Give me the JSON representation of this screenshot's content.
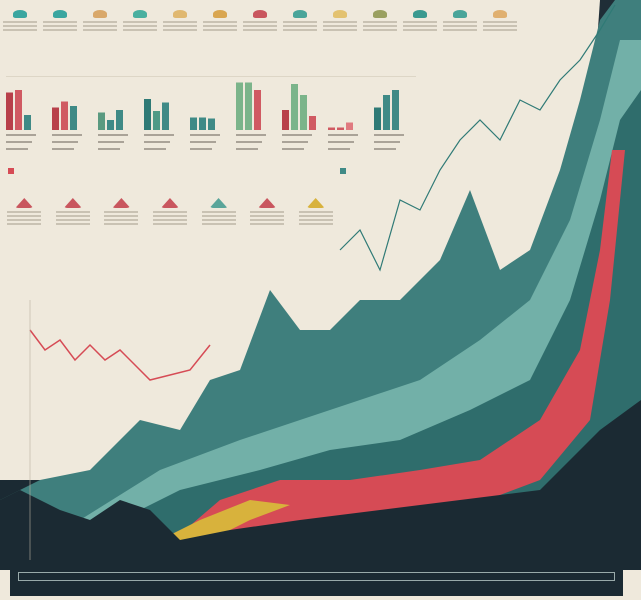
{
  "colors": {
    "paper": "#efe9dc",
    "dark": "#1b2a33",
    "teal": "#3f8a86",
    "teal_light": "#7fbdb3",
    "red": "#d64b55",
    "yellow": "#d8b23c",
    "green": "#7bb48a"
  },
  "top_cards": [
    {
      "icon": "teal-shape-icon",
      "color": "#3aa6a0"
    },
    {
      "icon": "teal-shape-icon",
      "color": "#3aa6a0"
    },
    {
      "icon": "tan-shape-icon",
      "color": "#d9a86a"
    },
    {
      "icon": "teal-shape-icon",
      "color": "#4ab0a0"
    },
    {
      "icon": "tan-shape-icon",
      "color": "#e0b870"
    },
    {
      "icon": "tan-shape-icon",
      "color": "#d9a650"
    },
    {
      "icon": "red-shape-icon",
      "color": "#c9565e"
    },
    {
      "icon": "teal-shape-icon",
      "color": "#4aa59a"
    },
    {
      "icon": "yellow-shape-icon",
      "color": "#e3c270"
    },
    {
      "icon": "olive-shape-icon",
      "color": "#9aa060"
    },
    {
      "icon": "teal-shape-icon",
      "color": "#3a9a90"
    },
    {
      "icon": "teal-shape-icon",
      "color": "#4aa59a"
    },
    {
      "icon": "tan-shape-icon",
      "color": "#e0b070"
    }
  ],
  "mini_cards": [
    {
      "color": "#c9565e"
    },
    {
      "color": "#c9565e"
    },
    {
      "color": "#c9565e"
    },
    {
      "color": "#c9565e"
    },
    {
      "color": "#5aa59a"
    },
    {
      "color": "#c9565e"
    },
    {
      "color": "#d8b23c"
    }
  ],
  "chart_data": [
    {
      "type": "bar",
      "title": "",
      "ylim": [
        0,
        100
      ],
      "categories": [
        "",
        "",
        "",
        "",
        "",
        "",
        "",
        "",
        ""
      ],
      "groups": [
        {
          "values": [
            75,
            80,
            30
          ],
          "colors": [
            "#b8404a",
            "#d05a62",
            "#3f8a86"
          ]
        },
        {
          "values": [
            45,
            57,
            48
          ],
          "colors": [
            "#b8404a",
            "#d05a62",
            "#3f8a86"
          ]
        },
        {
          "values": [
            35,
            20,
            40
          ],
          "colors": [
            "#5a9a80",
            "#3f8a86",
            "#3f8a86"
          ]
        },
        {
          "values": [
            62,
            38,
            55
          ],
          "colors": [
            "#2f7a76",
            "#4f9a86",
            "#3f8a86"
          ]
        },
        {
          "values": [
            25,
            25,
            23
          ],
          "colors": [
            "#3f8a86",
            "#3f8a86",
            "#3f8a86"
          ]
        },
        {
          "values": [
            95,
            95,
            80
          ],
          "colors": [
            "#7bb48a",
            "#7bb48a",
            "#d05a62"
          ]
        },
        {
          "values": [
            40,
            92,
            70,
            28
          ],
          "colors": [
            "#b8404a",
            "#7bb48a",
            "#7bb48a",
            "#d05a62"
          ]
        },
        {
          "values": [
            5,
            5,
            15
          ],
          "colors": [
            "#d05a62",
            "#d05a62",
            "#e07a80"
          ]
        },
        {
          "values": [
            45,
            70,
            80
          ],
          "colors": [
            "#2f7a76",
            "#3f8a86",
            "#3f8a86"
          ]
        }
      ]
    },
    {
      "type": "area",
      "title": "",
      "xlabel": "",
      "ylabel": "",
      "series": []
    }
  ]
}
